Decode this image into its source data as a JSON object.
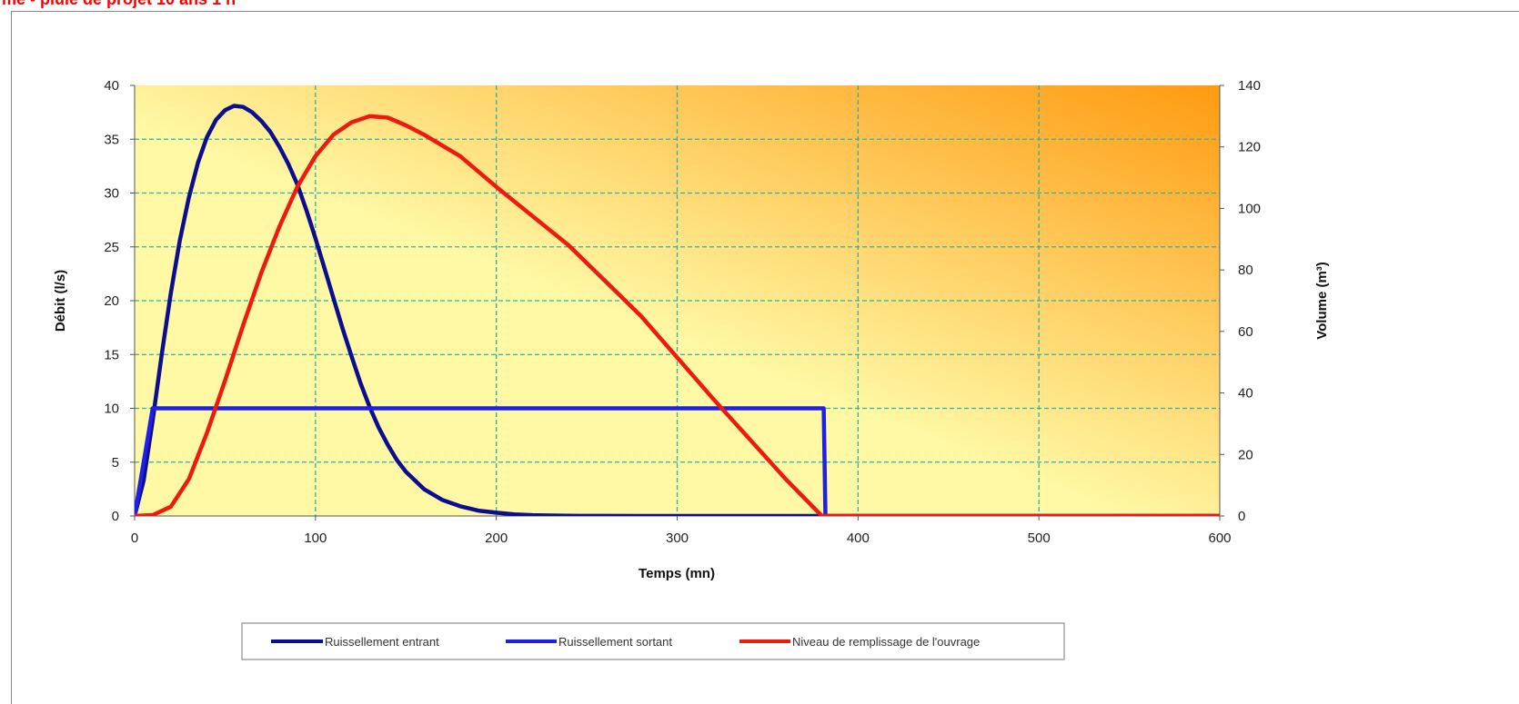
{
  "page": {
    "title": "me - pluie de projet 10 ans 1 h"
  },
  "colors": {
    "plot_bg_light": "#fff9a6",
    "plot_bg_dark": "#ff9a10",
    "grid": "#2fb1a4",
    "inflow": "#0d0d8f",
    "outflow": "#1f1fe5",
    "fill_level": "#ee1a10"
  },
  "chart_data": {
    "type": "line",
    "title": "",
    "xlabel": "Temps (mn)",
    "ylabel": "Débit (l/s)",
    "y2label": "Volume (m³)",
    "xlim": [
      0,
      600
    ],
    "ylim": [
      0,
      40
    ],
    "y2lim": [
      0,
      140
    ],
    "xticks": [
      0,
      100,
      200,
      300,
      400,
      500,
      600
    ],
    "yticks": [
      0,
      5,
      10,
      15,
      20,
      25,
      30,
      35,
      40
    ],
    "y2ticks": [
      0,
      20,
      40,
      60,
      80,
      100,
      120,
      140
    ],
    "grid": true,
    "legend": "bottom",
    "series": [
      {
        "name": "Ruissellement entrant",
        "axis": "left",
        "color": "#0d0d8f",
        "x": [
          0,
          5,
          10,
          15,
          20,
          25,
          30,
          35,
          40,
          45,
          50,
          55,
          60,
          65,
          70,
          75,
          80,
          85,
          90,
          95,
          100,
          105,
          110,
          115,
          120,
          125,
          130,
          135,
          140,
          145,
          150,
          160,
          170,
          180,
          190,
          200,
          210,
          220,
          230,
          240,
          260,
          280,
          300,
          340,
          380,
          600
        ],
        "y": [
          0,
          3.3,
          8.9,
          15.0,
          20.7,
          25.6,
          29.6,
          32.8,
          35.2,
          36.8,
          37.7,
          38.1,
          38.0,
          37.5,
          36.7,
          35.7,
          34.3,
          32.7,
          30.8,
          28.4,
          25.8,
          23.0,
          20.2,
          17.4,
          14.8,
          12.3,
          10.1,
          8.2,
          6.6,
          5.2,
          4.1,
          2.5,
          1.5,
          0.9,
          0.5,
          0.3,
          0.15,
          0.08,
          0.04,
          0.02,
          0.01,
          0,
          0,
          0,
          0,
          0
        ]
      },
      {
        "name": "Ruissellement sortant",
        "axis": "left",
        "color": "#1f1fe5",
        "x": [
          0,
          10,
          380,
          381,
          382,
          600
        ],
        "y": [
          0,
          10,
          10,
          10,
          0,
          0
        ]
      },
      {
        "name": "Niveau de remplissage de l'ouvrage",
        "axis": "right",
        "color": "#ee1a10",
        "x": [
          0,
          10,
          20,
          30,
          40,
          50,
          60,
          70,
          80,
          90,
          100,
          110,
          120,
          130,
          140,
          150,
          160,
          180,
          200,
          240,
          280,
          320,
          360,
          380,
          382,
          600
        ],
        "y": [
          0,
          0.3,
          3,
          12,
          27,
          44,
          62,
          79,
          94,
          107,
          117,
          124,
          128,
          130,
          129.5,
          127,
          124,
          117,
          107,
          88,
          65,
          38,
          12,
          0,
          0,
          0
        ]
      }
    ]
  },
  "legend": {
    "items": [
      {
        "label": "Ruissellement entrant"
      },
      {
        "label": "Ruissellement sortant"
      },
      {
        "label": "Niveau de remplissage de l'ouvrage"
      }
    ]
  }
}
